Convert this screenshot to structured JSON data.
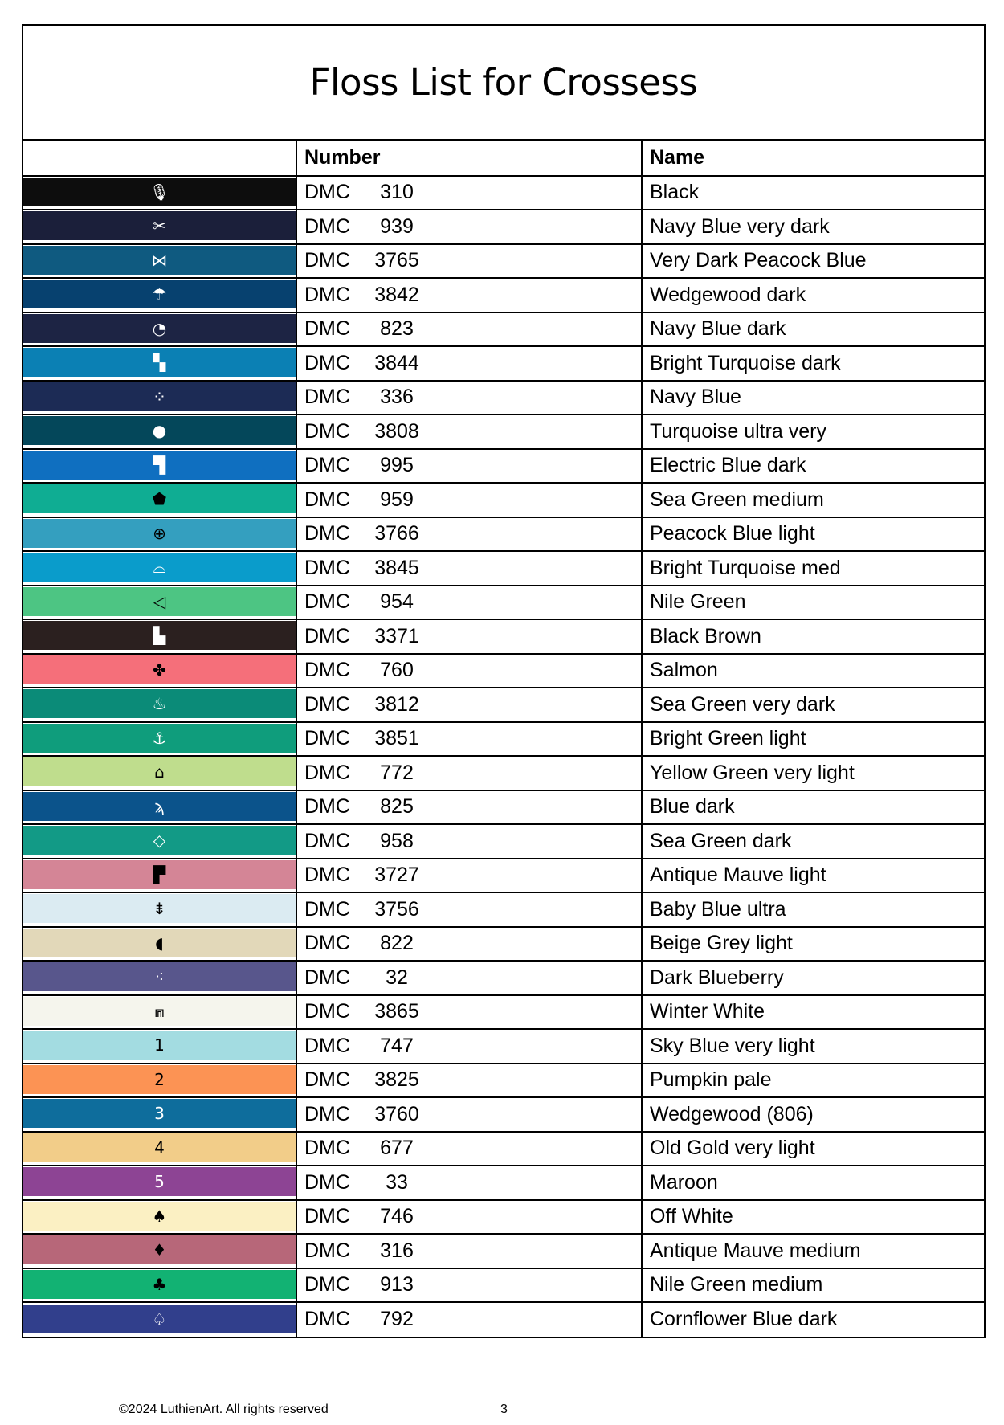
{
  "title": "Floss List for Crossess",
  "headers": {
    "symbol": "",
    "number": "Number",
    "name": "Name"
  },
  "rows": [
    {
      "brand": "DMC",
      "code": "310",
      "name": "Black",
      "color": "#0d0d0d",
      "symbol": "🎙",
      "fg": "#ffffff"
    },
    {
      "brand": "DMC",
      "code": "939",
      "name": "Navy Blue very dark",
      "color": "#1b1f3a",
      "symbol": "✂",
      "fg": "#ffffff"
    },
    {
      "brand": "DMC",
      "code": "3765",
      "name": "Very Dark Peacock Blue",
      "color": "#0f5a80",
      "symbol": "⋈",
      "fg": "#ffffff"
    },
    {
      "brand": "DMC",
      "code": "3842",
      "name": "Wedgewood dark",
      "color": "#07416f",
      "symbol": "☂",
      "fg": "#ffffff"
    },
    {
      "brand": "DMC",
      "code": "823",
      "name": "Navy Blue dark",
      "color": "#1d2444",
      "symbol": "◔",
      "fg": "#ffffff"
    },
    {
      "brand": "DMC",
      "code": "3844",
      "name": "Bright Turquoise dark",
      "color": "#0b80b4",
      "symbol": "▚",
      "fg": "#ffffff"
    },
    {
      "brand": "DMC",
      "code": "336",
      "name": "Navy Blue",
      "color": "#1c2b55",
      "symbol": "⁘",
      "fg": "#ffffff"
    },
    {
      "brand": "DMC",
      "code": "3808",
      "name": "Turquoise ultra very",
      "color": "#04475a",
      "symbol": "●",
      "fg": "#ffffff"
    },
    {
      "brand": "DMC",
      "code": "995",
      "name": "Electric Blue dark",
      "color": "#0f6fc0",
      "symbol": "▜",
      "fg": "#ffffff"
    },
    {
      "brand": "DMC",
      "code": "959",
      "name": "Sea Green medium",
      "color": "#0fad93",
      "symbol": "⬟",
      "fg": "#000000"
    },
    {
      "brand": "DMC",
      "code": "3766",
      "name": "Peacock Blue light",
      "color": "#349fbf",
      "symbol": "⊕",
      "fg": "#000000"
    },
    {
      "brand": "DMC",
      "code": "3845",
      "name": "Bright Turquoise med",
      "color": "#0a9ccb",
      "symbol": "⌓",
      "fg": "#ffffff"
    },
    {
      "brand": "DMC",
      "code": "954",
      "name": "Nile Green",
      "color": "#4dc583",
      "symbol": "◁",
      "fg": "#000000"
    },
    {
      "brand": "DMC",
      "code": "3371",
      "name": "Black Brown",
      "color": "#2b201f",
      "symbol": "▙",
      "fg": "#ffffff"
    },
    {
      "brand": "DMC",
      "code": "760",
      "name": "Salmon",
      "color": "#f56f7a",
      "symbol": "✤",
      "fg": "#000000"
    },
    {
      "brand": "DMC",
      "code": "3812",
      "name": "Sea Green very dark",
      "color": "#0b8b78",
      "symbol": "♨",
      "fg": "#ffffff"
    },
    {
      "brand": "DMC",
      "code": "3851",
      "name": "Bright Green light",
      "color": "#0f9d7c",
      "symbol": "⚓",
      "fg": "#ffffff"
    },
    {
      "brand": "DMC",
      "code": "772",
      "name": "Yellow Green very light",
      "color": "#bfdd8d",
      "symbol": "⌂",
      "fg": "#000000"
    },
    {
      "brand": "DMC",
      "code": "825",
      "name": "Blue dark",
      "color": "#0b538b",
      "symbol": "ϡ",
      "fg": "#ffffff"
    },
    {
      "brand": "DMC",
      "code": "958",
      "name": "Sea Green dark",
      "color": "#129a86",
      "symbol": "◇",
      "fg": "#ffffff"
    },
    {
      "brand": "DMC",
      "code": "3727",
      "name": "Antique Mauve light",
      "color": "#d48596",
      "symbol": "▛",
      "fg": "#000000"
    },
    {
      "brand": "DMC",
      "code": "3756",
      "name": "Baby Blue ultra",
      "color": "#dbebf2",
      "symbol": "⇟",
      "fg": "#000000"
    },
    {
      "brand": "DMC",
      "code": "822",
      "name": "Beige Grey light",
      "color": "#e2d8b9",
      "symbol": "◖",
      "fg": "#000000"
    },
    {
      "brand": "DMC",
      "code": "32",
      "name": "Dark Blueberry",
      "color": "#58568c",
      "symbol": "⁖",
      "fg": "#ffffff"
    },
    {
      "brand": "DMC",
      "code": "3865",
      "name": "Winter White",
      "color": "#f5f5ed",
      "symbol": "⩎",
      "fg": "#000000"
    },
    {
      "brand": "DMC",
      "code": "747",
      "name": "Sky Blue very light",
      "color": "#a3dce1",
      "symbol": "1",
      "fg": "#000000"
    },
    {
      "brand": "DMC",
      "code": "3825",
      "name": "Pumpkin pale",
      "color": "#fc9354",
      "symbol": "2",
      "fg": "#000000"
    },
    {
      "brand": "DMC",
      "code": "3760",
      "name": "Wedgewood (806)",
      "color": "#0e6d9c",
      "symbol": "3",
      "fg": "#ffffff"
    },
    {
      "brand": "DMC",
      "code": "677",
      "name": "Old Gold very light",
      "color": "#f2cd89",
      "symbol": "4",
      "fg": "#000000"
    },
    {
      "brand": "DMC",
      "code": "33",
      "name": "Maroon",
      "color": "#8d4494",
      "symbol": "5",
      "fg": "#ffffff"
    },
    {
      "brand": "DMC",
      "code": "746",
      "name": "Off White",
      "color": "#fbf0c3",
      "symbol": "♠",
      "fg": "#000000"
    },
    {
      "brand": "DMC",
      "code": "316",
      "name": "Antique Mauve medium",
      "color": "#b76779",
      "symbol": "♦",
      "fg": "#000000"
    },
    {
      "brand": "DMC",
      "code": "913",
      "name": "Nile Green medium",
      "color": "#12b273",
      "symbol": "♣",
      "fg": "#000000"
    },
    {
      "brand": "DMC",
      "code": "792",
      "name": "Cornflower Blue dark",
      "color": "#313f8c",
      "symbol": "♤",
      "fg": "#ffffff"
    }
  ],
  "footer": {
    "copyright": "©2024 LuthienArt. All rights reserved",
    "page": "3"
  }
}
